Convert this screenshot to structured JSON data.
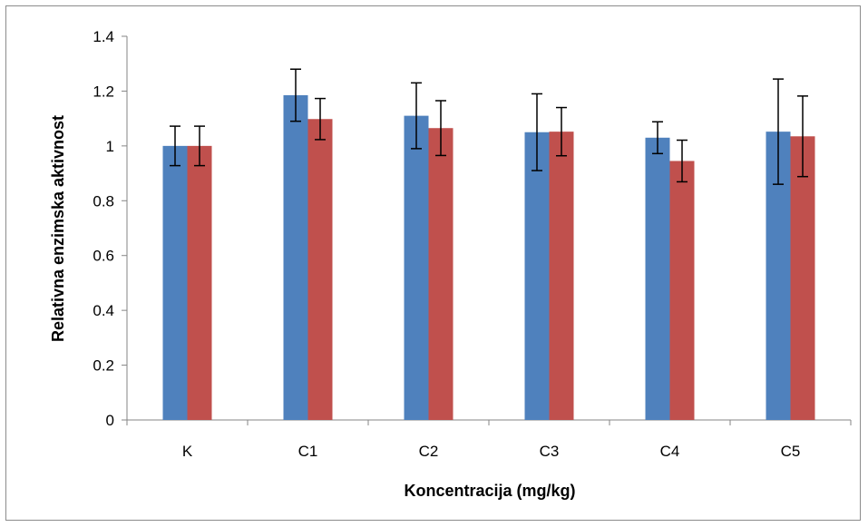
{
  "chart_data": {
    "type": "bar",
    "title": "",
    "xlabel": "Koncentracija (mg/kg)",
    "ylabel": "Relativna enzimska aktivnost",
    "categories": [
      "K",
      "C1",
      "C2",
      "C3",
      "C4",
      "C5"
    ],
    "ylim": [
      0,
      1.4
    ],
    "yticks": [
      0,
      0.2,
      0.4,
      0.6,
      0.8,
      1,
      1.2,
      1.4
    ],
    "ytick_labels": [
      "0",
      "0.2",
      "0.4",
      "0.6",
      "0.8",
      "1",
      "1.2",
      "1.4"
    ],
    "grid": false,
    "legend": "none",
    "series": [
      {
        "color": "#4f81bd",
        "values": [
          1.0,
          1.185,
          1.11,
          1.05,
          1.03,
          1.052
        ],
        "error": [
          0.072,
          0.095,
          0.12,
          0.14,
          0.058,
          0.192
        ]
      },
      {
        "color": "#c0504d",
        "values": [
          1.0,
          1.098,
          1.065,
          1.052,
          0.945,
          1.035
        ],
        "error": [
          0.072,
          0.075,
          0.1,
          0.088,
          0.076,
          0.147
        ]
      }
    ]
  }
}
